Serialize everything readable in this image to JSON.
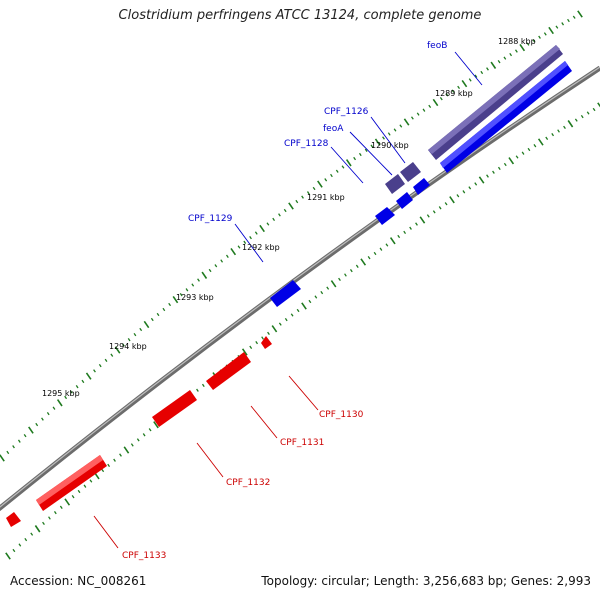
{
  "header": {
    "title": "Clostridium perfringens ATCC 13124, complete genome"
  },
  "footer": {
    "accession": "Accession: NC_008261",
    "summary": "Topology: circular; Length: 3,256,683 bp; Genes: 2,993"
  },
  "colors": {
    "backbone": "#7a7a7a",
    "forward": "#0000e6",
    "forward_operon": "#4a3f8c",
    "reverse": "#e60000",
    "tick": "#1f7a1f",
    "forward_label": "#0000cc",
    "reverse_label": "#cc0000"
  },
  "scale": {
    "unit": "kbp",
    "ticks": [
      {
        "label": "1288 kbp"
      },
      {
        "label": "1289 kbp"
      },
      {
        "label": "1290 kbp"
      },
      {
        "label": "1291 kbp"
      },
      {
        "label": "1292 kbp"
      },
      {
        "label": "1293 kbp"
      },
      {
        "label": "1294 kbp"
      },
      {
        "label": "1295 kbp"
      }
    ]
  },
  "features": [
    {
      "name": "feoB",
      "strand": "+",
      "kind": "operon"
    },
    {
      "name": "CPF_1126",
      "strand": "+",
      "kind": "operon"
    },
    {
      "name": "feoA",
      "strand": "+",
      "kind": "operon"
    },
    {
      "name": "CPF_1128",
      "strand": "+",
      "kind": "gene"
    },
    {
      "name": "CPF_1129",
      "strand": "+",
      "kind": "gene"
    },
    {
      "name": "CPF_1130",
      "strand": "-",
      "kind": "gene"
    },
    {
      "name": "CPF_1131",
      "strand": "-",
      "kind": "gene"
    },
    {
      "name": "CPF_1132",
      "strand": "-",
      "kind": "gene"
    },
    {
      "name": "CPF_1133",
      "strand": "-",
      "kind": "gene"
    }
  ]
}
